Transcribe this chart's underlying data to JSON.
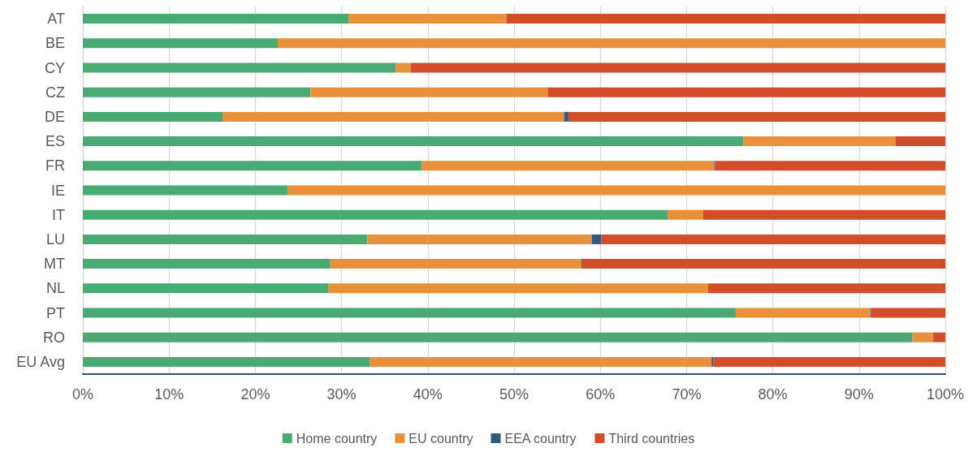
{
  "chart_data": {
    "type": "bar",
    "orientation": "horizontal",
    "stacked": true,
    "categories": [
      "AT",
      "BE",
      "CY",
      "CZ",
      "DE",
      "ES",
      "FR",
      "IE",
      "IT",
      "LU",
      "MT",
      "NL",
      "PT",
      "RO",
      "EU Avg"
    ],
    "series": [
      {
        "name": "Home country",
        "color": "#4aaa74",
        "values": [
          30.8,
          22.6,
          36.3,
          26.4,
          16.2,
          76.6,
          39.3,
          23.8,
          67.8,
          33.0,
          28.7,
          28.5,
          75.7,
          96.2,
          33.3
        ]
      },
      {
        "name": "EU country",
        "color": "#e9903a",
        "values": [
          18.3,
          77.4,
          1.7,
          27.5,
          39.6,
          17.6,
          33.9,
          76.2,
          4.1,
          26.0,
          29.1,
          44.0,
          15.6,
          2.4,
          39.6
        ]
      },
      {
        "name": "EEA country",
        "color": "#2d5a7e",
        "values": [
          0,
          0,
          0,
          0,
          0.5,
          0,
          0.1,
          0,
          0,
          1.1,
          0.1,
          0,
          0.1,
          0,
          0.2
        ]
      },
      {
        "name": "Third countries",
        "color": "#d24d2a",
        "values": [
          50.9,
          0,
          62.0,
          46.1,
          43.7,
          5.8,
          26.7,
          0,
          28.1,
          39.9,
          42.1,
          27.5,
          8.6,
          1.4,
          26.9
        ]
      }
    ],
    "xlim": [
      0,
      100
    ],
    "xticks": [
      {
        "value": 0,
        "label": "0%"
      },
      {
        "value": 10,
        "label": "10%"
      },
      {
        "value": 20,
        "label": "20%"
      },
      {
        "value": 30,
        "label": "30%"
      },
      {
        "value": 40,
        "label": "40%"
      },
      {
        "value": 50,
        "label": "50%"
      },
      {
        "value": 60,
        "label": "60%"
      },
      {
        "value": 70,
        "label": "70%"
      },
      {
        "value": 80,
        "label": "80%"
      },
      {
        "value": 90,
        "label": "90%"
      },
      {
        "value": 100,
        "label": "100%"
      }
    ],
    "grid": "x",
    "legend": "bottom"
  }
}
